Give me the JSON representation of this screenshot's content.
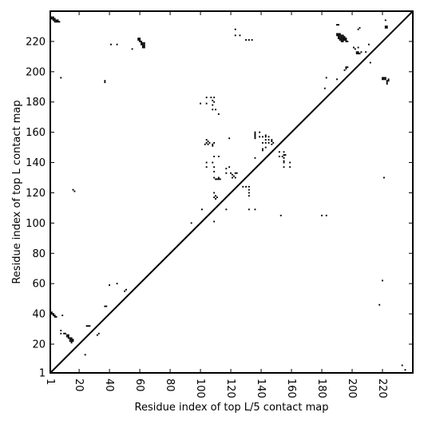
{
  "chart_data": {
    "type": "scatter",
    "title": "",
    "xlabel": "Residue index of top L/5 contact map",
    "ylabel": "Residue index of top L contact map",
    "xlim": [
      1,
      240
    ],
    "ylim": [
      1,
      240
    ],
    "x_ticks": [
      1,
      20,
      40,
      60,
      80,
      100,
      120,
      140,
      160,
      180,
      200,
      220
    ],
    "y_ticks": [
      1,
      20,
      40,
      60,
      80,
      100,
      120,
      140,
      160,
      180,
      200,
      220
    ],
    "diagonal": true,
    "marker": "square",
    "marker_color": "#000000",
    "series": [
      {
        "values": [
          [
            2,
            235
          ],
          [
            2,
            236
          ],
          [
            3,
            234
          ],
          [
            3,
            235
          ],
          [
            3,
            236
          ],
          [
            4,
            234
          ],
          [
            4,
            235
          ],
          [
            4,
            233
          ],
          [
            5,
            233
          ],
          [
            5,
            234
          ],
          [
            6,
            233
          ],
          [
            6,
            234
          ],
          [
            7,
            233
          ],
          [
            8,
            196
          ],
          [
            37,
            193
          ],
          [
            37,
            194
          ],
          [
            41,
            218
          ],
          [
            45,
            218
          ],
          [
            55,
            215
          ],
          [
            59,
            221
          ],
          [
            59,
            222
          ],
          [
            60,
            220
          ],
          [
            60,
            221
          ],
          [
            60,
            222
          ],
          [
            61,
            218
          ],
          [
            61,
            219
          ],
          [
            61,
            220
          ],
          [
            62,
            217
          ],
          [
            62,
            218
          ],
          [
            62,
            219
          ],
          [
            62,
            216
          ],
          [
            63,
            216
          ],
          [
            63,
            217
          ],
          [
            63,
            218
          ],
          [
            63,
            219
          ],
          [
            123,
            228
          ],
          [
            123,
            224
          ],
          [
            126,
            224
          ],
          [
            130,
            221
          ],
          [
            132,
            221
          ],
          [
            134,
            221
          ],
          [
            190,
            231
          ],
          [
            191,
            231
          ],
          [
            190,
            225
          ],
          [
            190,
            224
          ],
          [
            191,
            225
          ],
          [
            191,
            224
          ],
          [
            191,
            223
          ],
          [
            191,
            222
          ],
          [
            192,
            225
          ],
          [
            192,
            224
          ],
          [
            192,
            223
          ],
          [
            192,
            222
          ],
          [
            192,
            221
          ],
          [
            193,
            224
          ],
          [
            193,
            223
          ],
          [
            193,
            222
          ],
          [
            193,
            221
          ],
          [
            193,
            220
          ],
          [
            194,
            224
          ],
          [
            194,
            223
          ],
          [
            194,
            222
          ],
          [
            194,
            221
          ],
          [
            194,
            220
          ],
          [
            195,
            223
          ],
          [
            195,
            222
          ],
          [
            195,
            221
          ],
          [
            196,
            222
          ],
          [
            196,
            221
          ],
          [
            196,
            220
          ],
          [
            197,
            220
          ],
          [
            204,
            228
          ],
          [
            205,
            229
          ],
          [
            201,
            216
          ],
          [
            202,
            215
          ],
          [
            203,
            213
          ],
          [
            203,
            212
          ],
          [
            204,
            212
          ],
          [
            204,
            213
          ],
          [
            205,
            212
          ],
          [
            206,
            213
          ],
          [
            209,
            213
          ],
          [
            204,
            216
          ],
          [
            211,
            218
          ],
          [
            222,
            234
          ],
          [
            222,
            230
          ],
          [
            222,
            229
          ],
          [
            223,
            229
          ],
          [
            223,
            230
          ],
          [
            220,
            195
          ],
          [
            220,
            196
          ],
          [
            221,
            195
          ],
          [
            221,
            196
          ],
          [
            222,
            195
          ],
          [
            222,
            196
          ],
          [
            223,
            194
          ],
          [
            223,
            193
          ],
          [
            223,
            192
          ],
          [
            224,
            195
          ],
          [
            224,
            194
          ],
          [
            196,
            203
          ],
          [
            197,
            203
          ],
          [
            196,
            202
          ],
          [
            195,
            201
          ],
          [
            212,
            206
          ],
          [
            183,
            196
          ],
          [
            190,
            195
          ],
          [
            182,
            189
          ],
          [
            1,
            40
          ],
          [
            2,
            41
          ],
          [
            2,
            40
          ],
          [
            3,
            39
          ],
          [
            3,
            40
          ],
          [
            4,
            39
          ],
          [
            4,
            38
          ],
          [
            5,
            38
          ],
          [
            9,
            39
          ],
          [
            8,
            29
          ],
          [
            8,
            27
          ],
          [
            10,
            27
          ],
          [
            11,
            27
          ],
          [
            12,
            25
          ],
          [
            12,
            26
          ],
          [
            13,
            26
          ],
          [
            13,
            25
          ],
          [
            13,
            24
          ],
          [
            14,
            24
          ],
          [
            14,
            23
          ],
          [
            14,
            22
          ],
          [
            15,
            22
          ],
          [
            15,
            23
          ],
          [
            15,
            24
          ],
          [
            16,
            23
          ],
          [
            16,
            22
          ],
          [
            15,
            21
          ],
          [
            16,
            122
          ],
          [
            17,
            121
          ],
          [
            24,
            13
          ],
          [
            25,
            32
          ],
          [
            26,
            32
          ],
          [
            27,
            32
          ],
          [
            32,
            26
          ],
          [
            33,
            27
          ],
          [
            37,
            45
          ],
          [
            38,
            45
          ],
          [
            40,
            59
          ],
          [
            45,
            60
          ],
          [
            50,
            55
          ],
          [
            51,
            56
          ],
          [
            94,
            100
          ],
          [
            101,
            109
          ],
          [
            109,
            101
          ],
          [
            100,
            179
          ],
          [
            104,
            183
          ],
          [
            104,
            179
          ],
          [
            107,
            183
          ],
          [
            108,
            178
          ],
          [
            108,
            181
          ],
          [
            109,
            183
          ],
          [
            109,
            180
          ],
          [
            108,
            175
          ],
          [
            110,
            175
          ],
          [
            112,
            172
          ],
          [
            103,
            152
          ],
          [
            104,
            155
          ],
          [
            104,
            153
          ],
          [
            105,
            154
          ],
          [
            105,
            152
          ],
          [
            106,
            153
          ],
          [
            108,
            152
          ],
          [
            109,
            153
          ],
          [
            108,
            151
          ],
          [
            104,
            140
          ],
          [
            104,
            137
          ],
          [
            108,
            140
          ],
          [
            109,
            144
          ],
          [
            109,
            137
          ],
          [
            112,
            144
          ],
          [
            109,
            134
          ],
          [
            109,
            130
          ],
          [
            110,
            129
          ],
          [
            111,
            129
          ],
          [
            112,
            130
          ],
          [
            112,
            129
          ],
          [
            113,
            129
          ],
          [
            109,
            120
          ],
          [
            110,
            118
          ],
          [
            110,
            116
          ],
          [
            109,
            117
          ],
          [
            111,
            117
          ],
          [
            117,
            136
          ],
          [
            117,
            133
          ],
          [
            119,
            137
          ],
          [
            120,
            133
          ],
          [
            121,
            132
          ],
          [
            121,
            130
          ],
          [
            122,
            131
          ],
          [
            123,
            130
          ],
          [
            123,
            133
          ],
          [
            124,
            133
          ],
          [
            119,
            156
          ],
          [
            117,
            109
          ],
          [
            128,
            124
          ],
          [
            130,
            124
          ],
          [
            132,
            124
          ],
          [
            132,
            122
          ],
          [
            132,
            120
          ],
          [
            132,
            118
          ],
          [
            132,
            109
          ],
          [
            136,
            109
          ],
          [
            136,
            156
          ],
          [
            136,
            157
          ],
          [
            136,
            158
          ],
          [
            136,
            159
          ],
          [
            136,
            160
          ],
          [
            139,
            160
          ],
          [
            139,
            157
          ],
          [
            141,
            157
          ],
          [
            143,
            157
          ],
          [
            143,
            158
          ],
          [
            145,
            157
          ],
          [
            143,
            155
          ],
          [
            145,
            155
          ],
          [
            147,
            155
          ],
          [
            147,
            154
          ],
          [
            141,
            153
          ],
          [
            143,
            153
          ],
          [
            145,
            153
          ],
          [
            147,
            152
          ],
          [
            148,
            153
          ],
          [
            143,
            150
          ],
          [
            141,
            149
          ],
          [
            141,
            148
          ],
          [
            136,
            143
          ],
          [
            152,
            147
          ],
          [
            152,
            144
          ],
          [
            154,
            144
          ],
          [
            155,
            147
          ],
          [
            155,
            145
          ],
          [
            156,
            145
          ],
          [
            155,
            143
          ],
          [
            155,
            141
          ],
          [
            155,
            140
          ],
          [
            155,
            137
          ],
          [
            159,
            140
          ],
          [
            159,
            137
          ],
          [
            153,
            105
          ],
          [
            180,
            105
          ],
          [
            183,
            105
          ],
          [
            221,
            130
          ],
          [
            220,
            62
          ],
          [
            218,
            46
          ],
          [
            233,
            6
          ],
          [
            235,
            3
          ]
        ]
      }
    ]
  }
}
